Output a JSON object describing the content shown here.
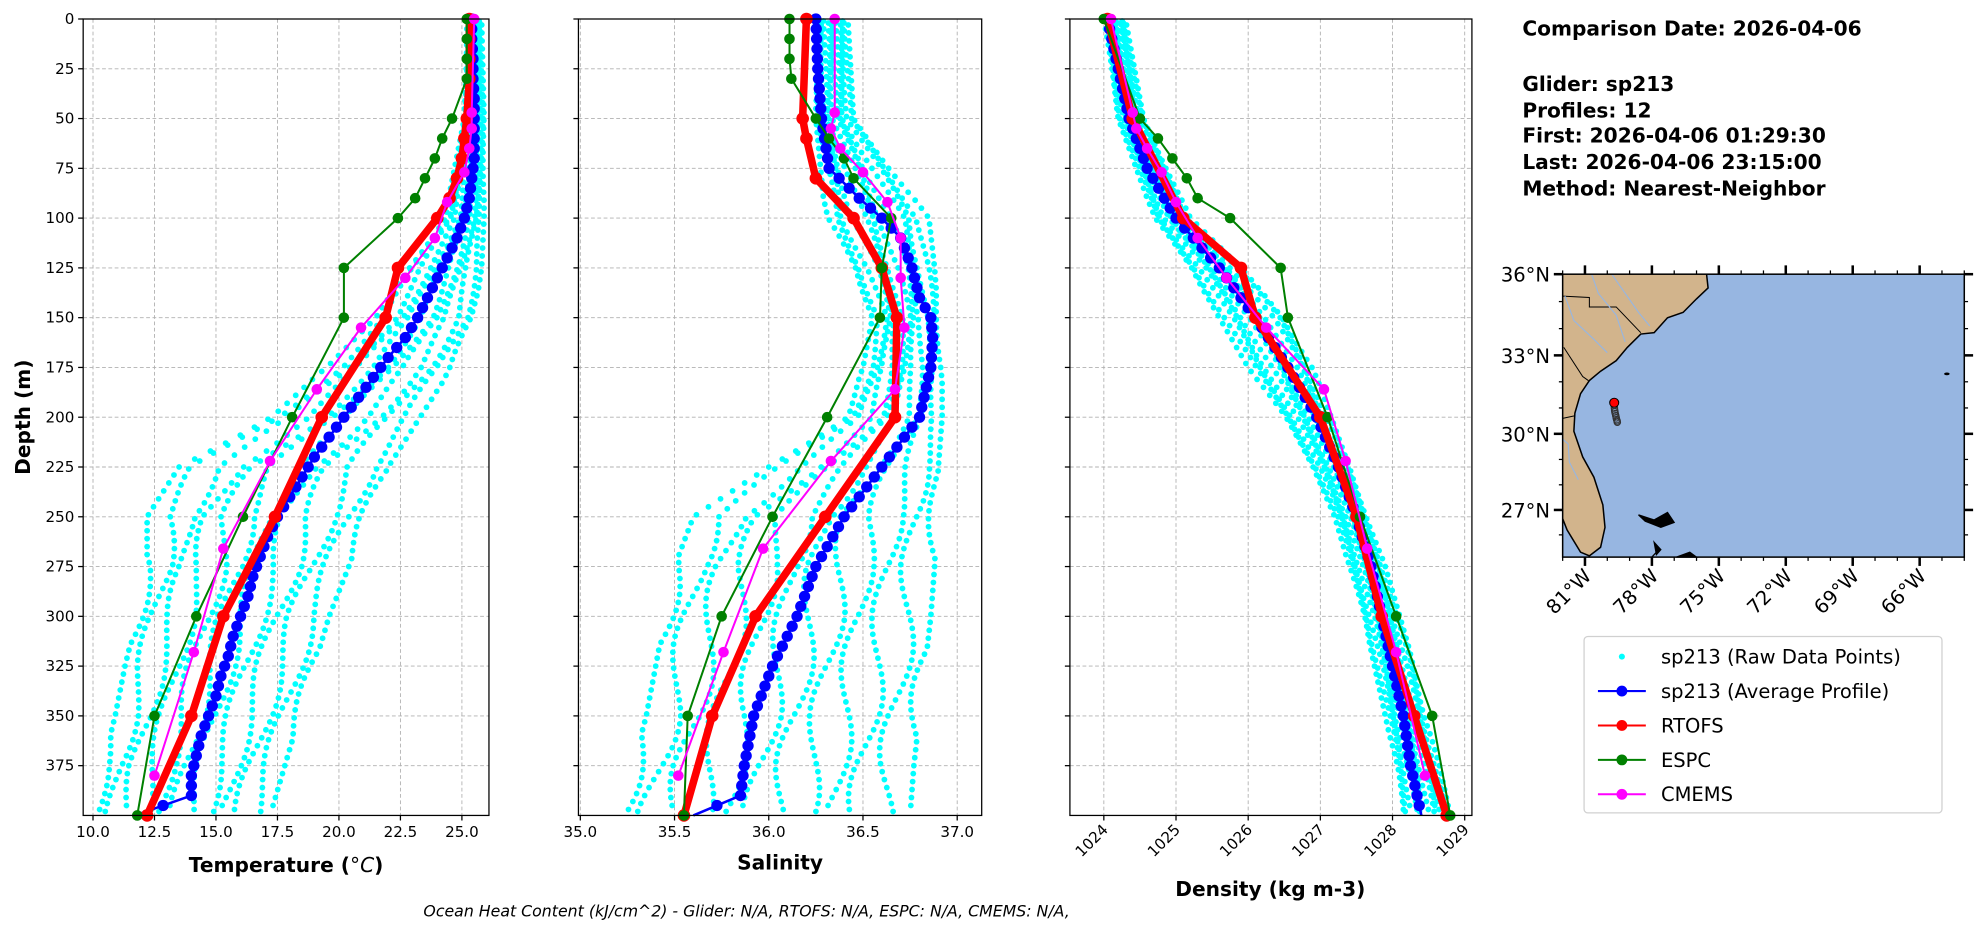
{
  "header": {
    "comparison_date": "Comparison Date: 2026-04-06",
    "glider": "Glider: sp213",
    "profiles": "Profiles: 12",
    "first": "First: 2026-04-06 01:29:30",
    "last": "Last: 2026-04-06 23:15:00",
    "method": "Method: Nearest-Neighbor"
  },
  "footer": "Ocean Heat Content (kJ/cm^2) - Glider: N/A,  RTOFS: N/A,  ESPC: N/A,  CMEMS: N/A,",
  "colors": {
    "raw": "#00ffff",
    "average": "#0000ff",
    "rtofs": "#ff0000",
    "espc": "#008000",
    "cmems": "#ff00ff",
    "land": "#d2b48c",
    "ocean": "#97b6e1"
  },
  "legend": {
    "placement": "right",
    "items": [
      {
        "label": "sp213 (Raw Data Points)",
        "key": "raw"
      },
      {
        "label": "sp213 (Average Profile)",
        "key": "average"
      },
      {
        "label": "RTOFS",
        "key": "rtofs"
      },
      {
        "label": "ESPC",
        "key": "espc"
      },
      {
        "label": "CMEMS",
        "key": "cmems"
      }
    ]
  },
  "chart_data": [
    {
      "type": "line",
      "title": "",
      "xlabel": "Temperature (°C)",
      "ylabel": "Depth (m)",
      "xlim": [
        9.6,
        26.1
      ],
      "ylim": [
        400,
        0
      ],
      "xticks": [
        "10.0",
        "12.5",
        "15.0",
        "17.5",
        "20.0",
        "22.5",
        "25.0"
      ],
      "yticks": [
        "0",
        "25",
        "50",
        "75",
        "100",
        "125",
        "150",
        "175",
        "200",
        "225",
        "250",
        "275",
        "300",
        "325",
        "350",
        "375"
      ],
      "grid": true,
      "raw_envelope": {
        "depth": [
          0,
          50,
          100,
          125,
          150,
          175,
          200,
          225,
          250,
          275,
          300,
          325,
          350,
          375,
          400
        ],
        "min": [
          25.2,
          25.1,
          24.3,
          22.8,
          21.5,
          19.5,
          17.0,
          13.5,
          12.2,
          12.2,
          11.8,
          11.3,
          10.9,
          10.4,
          10.1
        ],
        "max": [
          25.8,
          25.9,
          25.9,
          25.8,
          25.5,
          24.6,
          23.3,
          22.0,
          21.2,
          20.4,
          19.6,
          19.0,
          18.4,
          17.8,
          17.2
        ]
      },
      "series": [
        {
          "name": "sp213 (Average Profile)",
          "key": "average",
          "depth": [
            0,
            10,
            20,
            30,
            40,
            50,
            60,
            70,
            80,
            90,
            100,
            110,
            120,
            130,
            140,
            150,
            160,
            170,
            180,
            190,
            200,
            210,
            220,
            230,
            240,
            250,
            260,
            270,
            280,
            290,
            300,
            310,
            320,
            330,
            340,
            350,
            360,
            370,
            380,
            390,
            400
          ],
          "values": [
            25.4,
            25.4,
            25.45,
            25.45,
            25.5,
            25.5,
            25.5,
            25.5,
            25.4,
            25.3,
            25.1,
            24.8,
            24.4,
            24.0,
            23.6,
            23.2,
            22.7,
            22.0,
            21.4,
            20.8,
            20.2,
            19.6,
            19.0,
            18.5,
            18.0,
            17.5,
            17.1,
            16.8,
            16.5,
            16.3,
            16.0,
            15.7,
            15.5,
            15.2,
            15.0,
            14.7,
            14.4,
            14.2,
            14.0,
            14.0,
            11.7
          ]
        },
        {
          "name": "RTOFS",
          "key": "rtofs",
          "depth": [
            0,
            10,
            20,
            30,
            50,
            60,
            70,
            80,
            90,
            100,
            125,
            150,
            200,
            250,
            300,
            350,
            400
          ],
          "values": [
            25.3,
            25.3,
            25.3,
            25.3,
            25.2,
            25.1,
            25.0,
            24.8,
            24.5,
            24.0,
            22.4,
            21.9,
            19.3,
            17.4,
            15.3,
            14.0,
            12.2
          ]
        },
        {
          "name": "ESPC",
          "key": "espc",
          "depth": [
            0,
            10,
            20,
            30,
            50,
            60,
            70,
            80,
            90,
            100,
            125,
            150,
            200,
            250,
            300,
            350,
            400
          ],
          "values": [
            25.2,
            25.2,
            25.2,
            25.2,
            24.6,
            24.2,
            23.9,
            23.5,
            23.1,
            22.4,
            20.2,
            20.2,
            18.1,
            16.1,
            14.2,
            12.5,
            11.8
          ]
        },
        {
          "name": "CMEMS",
          "key": "cmems",
          "depth": [
            0,
            47,
            55,
            65,
            77,
            92,
            110,
            130,
            155,
            186,
            222,
            266,
            318,
            380
          ],
          "values": [
            25.5,
            25.4,
            25.4,
            25.3,
            25.1,
            24.4,
            23.9,
            22.7,
            20.9,
            19.1,
            17.2,
            15.3,
            14.1,
            12.5
          ]
        }
      ]
    },
    {
      "type": "line",
      "xlabel": "Salinity",
      "ylabel": "",
      "xlim": [
        34.99,
        37.13
      ],
      "ylim": [
        400,
        0
      ],
      "xticks": [
        "35.0",
        "35.5",
        "36.0",
        "36.5",
        "37.0"
      ],
      "grid": true,
      "raw_envelope": {
        "depth": [
          0,
          50,
          100,
          125,
          150,
          175,
          200,
          225,
          250,
          275,
          300,
          325,
          350,
          375,
          400
        ],
        "min": [
          36.25,
          36.25,
          36.3,
          36.45,
          36.55,
          36.5,
          36.4,
          36.0,
          35.6,
          35.5,
          35.45,
          35.4,
          35.35,
          35.28,
          35.22
        ],
        "max": [
          36.42,
          36.45,
          36.85,
          36.88,
          36.9,
          36.92,
          36.92,
          36.9,
          36.9,
          36.88,
          36.86,
          36.83,
          36.8,
          36.77,
          36.75
        ]
      },
      "series": [
        {
          "name": "sp213 (Average Profile)",
          "key": "average",
          "depth": [
            0,
            25,
            50,
            75,
            90,
            100,
            110,
            125,
            140,
            150,
            160,
            175,
            200,
            225,
            250,
            275,
            300,
            325,
            350,
            375,
            390,
            400
          ],
          "values": [
            36.25,
            36.26,
            36.28,
            36.32,
            36.48,
            36.6,
            36.7,
            36.76,
            36.8,
            36.86,
            36.87,
            36.86,
            36.8,
            36.6,
            36.4,
            36.25,
            36.15,
            36.02,
            35.92,
            35.87,
            35.85,
            35.6
          ]
        },
        {
          "name": "RTOFS",
          "key": "rtofs",
          "depth": [
            0,
            50,
            60,
            80,
            100,
            125,
            150,
            200,
            250,
            300,
            350,
            400
          ],
          "values": [
            36.2,
            36.18,
            36.2,
            36.25,
            36.45,
            36.6,
            36.68,
            36.67,
            36.3,
            35.93,
            35.7,
            35.55
          ]
        },
        {
          "name": "ESPC",
          "key": "espc",
          "depth": [
            0,
            10,
            20,
            30,
            50,
            60,
            70,
            80,
            100,
            125,
            150,
            200,
            250,
            300,
            350,
            400
          ],
          "values": [
            36.11,
            36.11,
            36.11,
            36.12,
            36.25,
            36.32,
            36.4,
            36.45,
            36.65,
            36.6,
            36.59,
            36.31,
            36.02,
            35.75,
            35.57,
            35.55
          ]
        },
        {
          "name": "CMEMS",
          "key": "cmems",
          "depth": [
            0,
            47,
            55,
            65,
            77,
            92,
            110,
            130,
            155,
            186,
            222,
            266,
            318,
            380
          ],
          "values": [
            36.35,
            36.35,
            36.33,
            36.38,
            36.5,
            36.63,
            36.7,
            36.7,
            36.72,
            36.67,
            36.33,
            35.97,
            35.76,
            35.52
          ]
        }
      ]
    },
    {
      "type": "line",
      "xlabel": "Density (kg m-3)",
      "ylabel": "",
      "xlim": [
        1023.53,
        1029.1
      ],
      "ylim": [
        400,
        0
      ],
      "xticks": [
        "1024",
        "1025",
        "1026",
        "1027",
        "1028",
        "1029"
      ],
      "grid": true,
      "raw_envelope": {
        "depth": [
          0,
          50,
          100,
          125,
          150,
          175,
          200,
          225,
          250,
          275,
          300,
          325,
          350,
          375,
          400
        ],
        "min": [
          1024.0,
          1024.2,
          1024.7,
          1025.2,
          1025.6,
          1026.0,
          1026.5,
          1026.9,
          1027.2,
          1027.4,
          1027.6,
          1027.75,
          1027.9,
          1028.05,
          1028.15
        ],
        "max": [
          1024.3,
          1024.55,
          1025.2,
          1025.9,
          1026.5,
          1026.9,
          1027.15,
          1027.4,
          1027.65,
          1027.9,
          1028.1,
          1028.3,
          1028.45,
          1028.65,
          1028.8
        ]
      },
      "series": [
        {
          "name": "sp213 (Average Profile)",
          "key": "average",
          "depth": [
            0,
            25,
            50,
            75,
            100,
            125,
            150,
            175,
            200,
            225,
            250,
            275,
            300,
            325,
            350,
            375,
            400
          ],
          "values": [
            1024.05,
            1024.2,
            1024.35,
            1024.6,
            1025.0,
            1025.6,
            1026.1,
            1026.55,
            1026.95,
            1027.25,
            1027.5,
            1027.7,
            1027.85,
            1028.0,
            1028.15,
            1028.25,
            1028.4
          ]
        },
        {
          "name": "RTOFS",
          "key": "rtofs",
          "depth": [
            0,
            50,
            100,
            125,
            150,
            200,
            250,
            300,
            350,
            400
          ],
          "values": [
            1024.05,
            1024.4,
            1025.1,
            1025.9,
            1026.1,
            1027.0,
            1027.5,
            1027.85,
            1028.3,
            1028.75
          ]
        },
        {
          "name": "ESPC",
          "key": "espc",
          "depth": [
            0,
            50,
            60,
            70,
            80,
            90,
            100,
            125,
            150,
            200,
            250,
            300,
            350,
            400
          ],
          "values": [
            1024.0,
            1024.5,
            1024.75,
            1024.95,
            1025.15,
            1025.3,
            1025.75,
            1026.45,
            1026.55,
            1027.1,
            1027.55,
            1028.05,
            1028.55,
            1028.8
          ]
        },
        {
          "name": "CMEMS",
          "key": "cmems",
          "depth": [
            0,
            47,
            55,
            65,
            77,
            92,
            110,
            130,
            155,
            186,
            222,
            266,
            318,
            380
          ],
          "values": [
            1024.1,
            1024.4,
            1024.45,
            1024.6,
            1024.8,
            1025.0,
            1025.3,
            1025.7,
            1026.25,
            1027.05,
            1027.35,
            1027.65,
            1028.05,
            1028.45
          ]
        }
      ]
    }
  ],
  "map": {
    "lon_range": [
      -82,
      -64
    ],
    "lat_range": [
      25.1,
      36
    ],
    "lat_ticks": [
      {
        "value": 36,
        "label": "36°N"
      },
      {
        "value": 33,
        "label": "33°N"
      },
      {
        "value": 30,
        "label": "30°N"
      },
      {
        "value": 27,
        "label": "27°N"
      }
    ],
    "lon_ticks": [
      {
        "value": -81,
        "label": "81°W"
      },
      {
        "value": -78,
        "label": "78°W"
      },
      {
        "value": -75,
        "label": "75°W"
      },
      {
        "value": -72,
        "label": "72°W"
      },
      {
        "value": -69,
        "label": "69°W"
      },
      {
        "value": -66,
        "label": "66°W"
      }
    ],
    "glider_track": {
      "lon": [
        -79.69,
        -79.69,
        -79.68,
        -79.67,
        -79.66,
        -79.64,
        -79.62,
        -79.6,
        -79.58,
        -79.56,
        -79.55
      ],
      "lat": [
        31.2,
        31.1,
        31.0,
        30.92,
        30.85,
        30.78,
        30.7,
        30.62,
        30.55,
        30.5,
        30.45
      ]
    },
    "latest_position": {
      "lon": -79.69,
      "lat": 31.2
    }
  }
}
